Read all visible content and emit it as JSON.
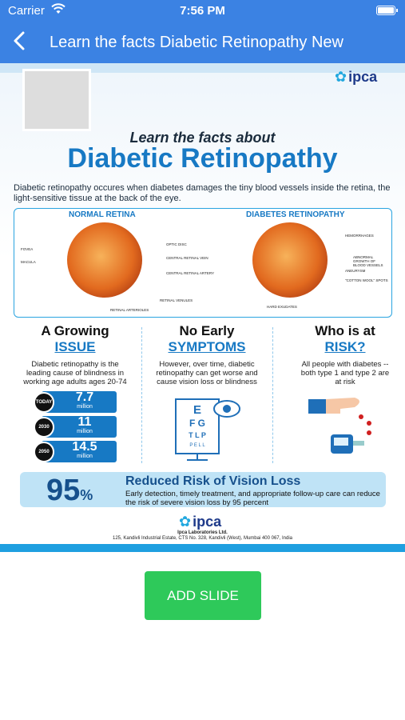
{
  "status_bar": {
    "carrier": "Carrier",
    "time": "7:56 PM"
  },
  "nav": {
    "title": "Learn the facts Diabetic Retinopathy New",
    "back_icon": "chevron-left-icon"
  },
  "slide": {
    "logo_text": "ipca",
    "sub_title": "Learn the facts about",
    "main_title": "Diabetic Retinopathy",
    "intro": "Diabetic retinopathy occures when diabetes damages the tiny blood vessels inside the retina, the light-sensitive tissue at the back of the eye.",
    "normal_label": "NORMAL RETINA",
    "diabetes_label": "DIABETES RETINOPATHY",
    "normal_tags": [
      "FOVEA",
      "MACULA",
      "OPTIC DISC",
      "CENTRAL RETINAL VEIN",
      "CENTRAL RETINAL ARTERY",
      "RETINAL VENULES",
      "RETINAL ARTERIOLES"
    ],
    "diabetes_tags": [
      "HEMORRHAGES",
      "ABNORMAL GROWTH OF BLOOD VESSELS",
      "ANEURYSM",
      "\"COTTON WOOL\" SPOTS",
      "HARD EXUDATES"
    ],
    "col1": {
      "h1": "A Growing",
      "h2": "ISSUE",
      "text": "Diabetic retinopathy is the leading cause of blindness in working age adults ages 20-74"
    },
    "col2": {
      "h1": "No Early",
      "h2": "SYMPTOMS",
      "text": "However, over time, diabetic retinopathy can get worse and cause vision loss or blindness"
    },
    "col3": {
      "h1": "Who is at",
      "h2": "RISK?",
      "text": "All people with diabetes -- both type 1 and type 2 are at risk"
    },
    "stats": [
      {
        "label": "TODAY",
        "value": "7.7",
        "unit": "million"
      },
      {
        "label": "2030",
        "value": "11",
        "unit": "million"
      },
      {
        "label": "2050",
        "value": "14.5",
        "unit": "million"
      }
    ],
    "eye_chart": {
      "row1": "E",
      "row2": "F G",
      "row3": "T L P",
      "row4": "P E L L"
    },
    "reduced": {
      "percent": "95",
      "percent_sign": "%",
      "title": "Reduced Risk of Vision Loss",
      "text": "Early detection, timely treatment, and appropriate follow-up care can reduce the risk of severe vision loss by 95 percent"
    },
    "footer": {
      "logo_text": "ipca",
      "company": "Ipca Laboratories Ltd.",
      "address": "125, Kandivli Industrial Estate, CTS No. 328, Kandivli (West), Mumbai 400 067, India"
    }
  },
  "add_slide_label": "ADD SLIDE"
}
